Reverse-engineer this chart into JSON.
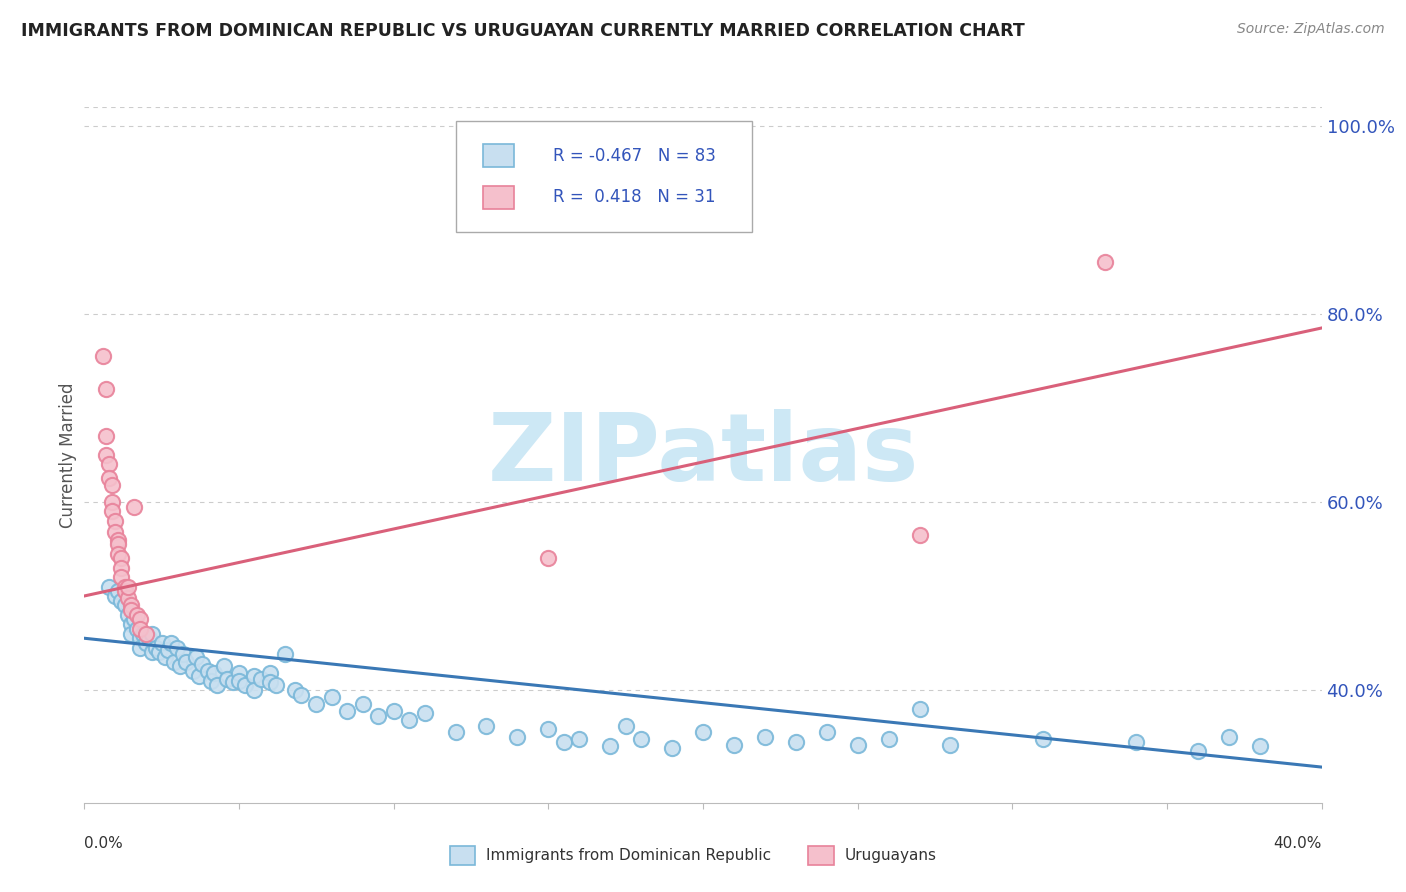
{
  "title": "IMMIGRANTS FROM DOMINICAN REPUBLIC VS URUGUAYAN CURRENTLY MARRIED CORRELATION CHART",
  "source": "Source: ZipAtlas.com",
  "ylabel": "Currently Married",
  "blue_r": -0.467,
  "blue_n": 83,
  "pink_r": 0.418,
  "pink_n": 31,
  "blue_color": "#7ab8d9",
  "blue_fill": "#c8dff0",
  "pink_color": "#e8829a",
  "pink_fill": "#f5c0cc",
  "trend_blue": "#3a78b5",
  "trend_pink": "#d9607a",
  "watermark_color": "#cde8f5",
  "legend_r_color": "#3355bb",
  "legend_n_color": "#3355bb",
  "ytick_color": "#3355bb",
  "blue_scatter": [
    [
      0.008,
      0.51
    ],
    [
      0.01,
      0.5
    ],
    [
      0.011,
      0.505
    ],
    [
      0.012,
      0.495
    ],
    [
      0.013,
      0.49
    ],
    [
      0.014,
      0.48
    ],
    [
      0.015,
      0.47
    ],
    [
      0.015,
      0.46
    ],
    [
      0.016,
      0.475
    ],
    [
      0.017,
      0.465
    ],
    [
      0.018,
      0.455
    ],
    [
      0.018,
      0.445
    ],
    [
      0.019,
      0.46
    ],
    [
      0.02,
      0.45
    ],
    [
      0.021,
      0.455
    ],
    [
      0.022,
      0.44
    ],
    [
      0.022,
      0.46
    ],
    [
      0.023,
      0.445
    ],
    [
      0.024,
      0.44
    ],
    [
      0.025,
      0.45
    ],
    [
      0.026,
      0.435
    ],
    [
      0.027,
      0.442
    ],
    [
      0.028,
      0.45
    ],
    [
      0.029,
      0.43
    ],
    [
      0.03,
      0.445
    ],
    [
      0.031,
      0.425
    ],
    [
      0.032,
      0.438
    ],
    [
      0.033,
      0.43
    ],
    [
      0.035,
      0.42
    ],
    [
      0.036,
      0.435
    ],
    [
      0.037,
      0.415
    ],
    [
      0.038,
      0.428
    ],
    [
      0.04,
      0.42
    ],
    [
      0.041,
      0.41
    ],
    [
      0.042,
      0.418
    ],
    [
      0.043,
      0.405
    ],
    [
      0.045,
      0.425
    ],
    [
      0.046,
      0.412
    ],
    [
      0.048,
      0.408
    ],
    [
      0.05,
      0.418
    ],
    [
      0.05,
      0.41
    ],
    [
      0.052,
      0.405
    ],
    [
      0.055,
      0.415
    ],
    [
      0.055,
      0.4
    ],
    [
      0.057,
      0.412
    ],
    [
      0.06,
      0.418
    ],
    [
      0.06,
      0.408
    ],
    [
      0.062,
      0.405
    ],
    [
      0.065,
      0.438
    ],
    [
      0.068,
      0.4
    ],
    [
      0.07,
      0.395
    ],
    [
      0.075,
      0.385
    ],
    [
      0.08,
      0.392
    ],
    [
      0.085,
      0.378
    ],
    [
      0.09,
      0.385
    ],
    [
      0.095,
      0.372
    ],
    [
      0.1,
      0.378
    ],
    [
      0.105,
      0.368
    ],
    [
      0.11,
      0.375
    ],
    [
      0.12,
      0.355
    ],
    [
      0.13,
      0.362
    ],
    [
      0.14,
      0.35
    ],
    [
      0.15,
      0.358
    ],
    [
      0.155,
      0.345
    ],
    [
      0.16,
      0.348
    ],
    [
      0.17,
      0.34
    ],
    [
      0.175,
      0.362
    ],
    [
      0.18,
      0.348
    ],
    [
      0.19,
      0.338
    ],
    [
      0.2,
      0.355
    ],
    [
      0.21,
      0.342
    ],
    [
      0.22,
      0.35
    ],
    [
      0.23,
      0.345
    ],
    [
      0.24,
      0.355
    ],
    [
      0.25,
      0.342
    ],
    [
      0.26,
      0.348
    ],
    [
      0.27,
      0.38
    ],
    [
      0.28,
      0.342
    ],
    [
      0.31,
      0.348
    ],
    [
      0.34,
      0.345
    ],
    [
      0.36,
      0.335
    ],
    [
      0.37,
      0.35
    ],
    [
      0.38,
      0.34
    ]
  ],
  "pink_scatter": [
    [
      0.006,
      0.755
    ],
    [
      0.007,
      0.72
    ],
    [
      0.007,
      0.67
    ],
    [
      0.007,
      0.65
    ],
    [
      0.008,
      0.64
    ],
    [
      0.008,
      0.625
    ],
    [
      0.009,
      0.618
    ],
    [
      0.009,
      0.6
    ],
    [
      0.009,
      0.59
    ],
    [
      0.01,
      0.58
    ],
    [
      0.01,
      0.568
    ],
    [
      0.011,
      0.56
    ],
    [
      0.011,
      0.555
    ],
    [
      0.011,
      0.545
    ],
    [
      0.012,
      0.54
    ],
    [
      0.012,
      0.53
    ],
    [
      0.012,
      0.52
    ],
    [
      0.013,
      0.51
    ],
    [
      0.013,
      0.505
    ],
    [
      0.014,
      0.498
    ],
    [
      0.014,
      0.51
    ],
    [
      0.015,
      0.49
    ],
    [
      0.015,
      0.485
    ],
    [
      0.016,
      0.595
    ],
    [
      0.017,
      0.48
    ],
    [
      0.018,
      0.475
    ],
    [
      0.018,
      0.465
    ],
    [
      0.02,
      0.46
    ],
    [
      0.15,
      0.54
    ],
    [
      0.27,
      0.565
    ],
    [
      0.33,
      0.855
    ]
  ],
  "blue_line_x": [
    0.0,
    0.4
  ],
  "blue_line_y": [
    0.455,
    0.318
  ],
  "pink_line_x": [
    0.0,
    0.4
  ],
  "pink_line_y": [
    0.5,
    0.785
  ],
  "xmin": 0.0,
  "xmax": 0.4,
  "ymin": 0.28,
  "ymax": 1.02,
  "yticks": [
    0.4,
    0.6,
    0.8,
    1.0
  ],
  "ytick_labels": [
    "40.0%",
    "60.0%",
    "80.0%",
    "100.0%"
  ],
  "xtick_positions": [
    0.0,
    0.05,
    0.1,
    0.15,
    0.2,
    0.25,
    0.3,
    0.35,
    0.4
  ],
  "grid_color": "#cccccc",
  "bg_color": "#ffffff"
}
